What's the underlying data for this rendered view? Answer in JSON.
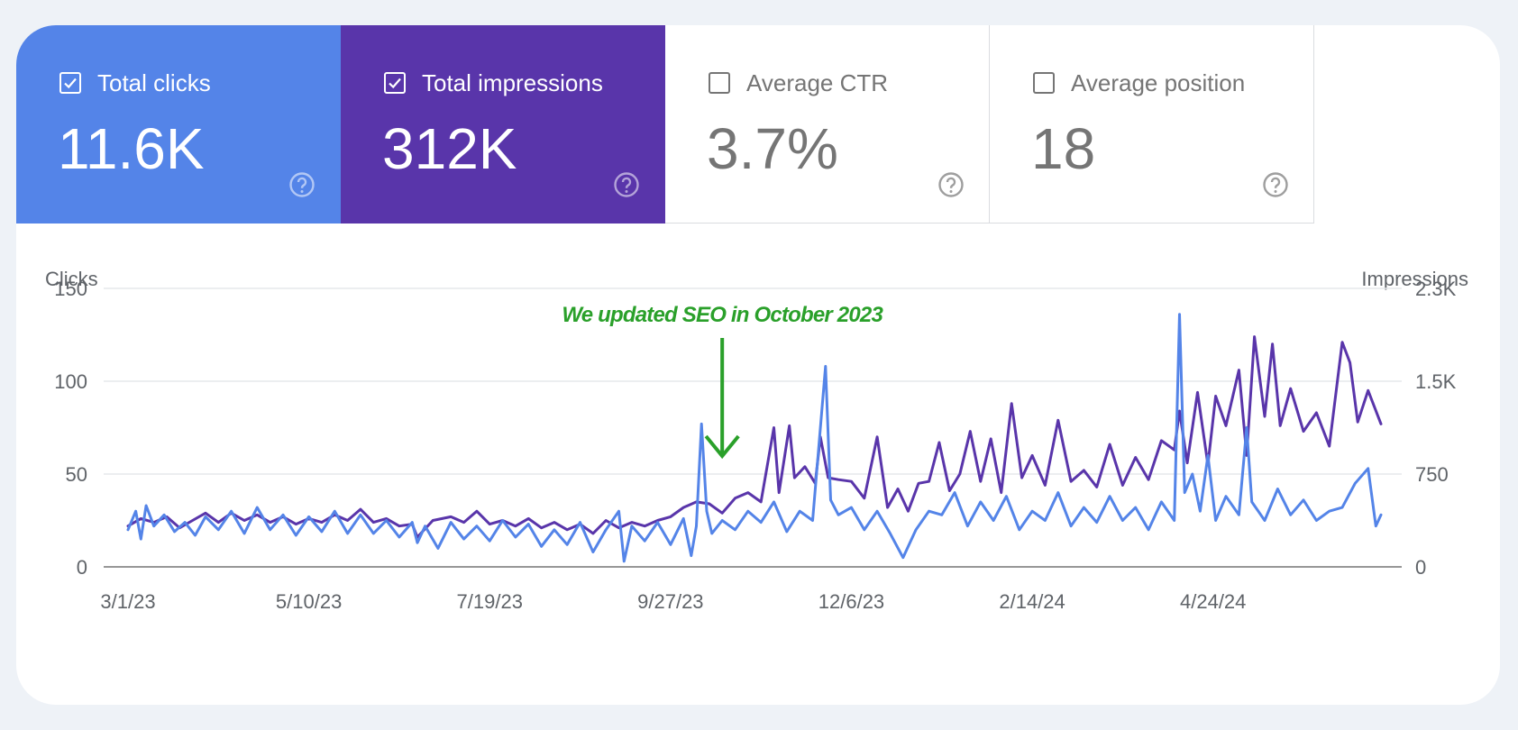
{
  "colors": {
    "clicks": "#5484e8",
    "impressions": "#5935aa",
    "annotation": "#2aa02a",
    "grid": "#e6e8eb",
    "axis": "#757575",
    "tick_text": "#5f6368"
  },
  "metrics": [
    {
      "label": "Total clicks",
      "value": "11.6K",
      "checked": true,
      "color": "#5484e8",
      "help_icon": "help-circle-icon"
    },
    {
      "label": "Total impressions",
      "value": "312K",
      "checked": true,
      "color": "#5935aa",
      "help_icon": "help-circle-icon"
    },
    {
      "label": "Average CTR",
      "value": "3.7%",
      "checked": false,
      "color": "#ffffff",
      "help_icon": "help-circle-icon"
    },
    {
      "label": "Average position",
      "value": "18",
      "checked": false,
      "color": "#ffffff",
      "help_icon": "help-circle-icon"
    }
  ],
  "chart_data": {
    "type": "line",
    "left_axis_label": "Clicks",
    "right_axis_label": "Impressions",
    "left_ticks": [
      "150",
      "100",
      "50",
      "0"
    ],
    "left_tick_values": [
      150,
      100,
      50,
      0
    ],
    "right_ticks": [
      "2.3K",
      "1.5K",
      "750",
      "0"
    ],
    "right_tick_values": [
      2250,
      1500,
      750,
      0
    ],
    "left_ylim": [
      0,
      150
    ],
    "right_ylim": [
      0,
      2250
    ],
    "x_ticks": [
      "3/1/23",
      "5/10/23",
      "7/19/23",
      "9/27/23",
      "12/6/23",
      "2/14/24",
      "4/24/24"
    ],
    "x_tick_days": [
      0,
      70,
      140,
      210,
      280,
      350,
      420
    ],
    "x_range_days": [
      0,
      485
    ],
    "annotation": {
      "text": "We updated SEO in October 2023",
      "day": 230
    },
    "series": [
      {
        "name": "Clicks",
        "axis": "left",
        "keyframes": [
          [
            0,
            20
          ],
          [
            3,
            30
          ],
          [
            5,
            15
          ],
          [
            7,
            33
          ],
          [
            10,
            22
          ],
          [
            14,
            28
          ],
          [
            18,
            19
          ],
          [
            22,
            24
          ],
          [
            26,
            17
          ],
          [
            30,
            27
          ],
          [
            35,
            20
          ],
          [
            40,
            30
          ],
          [
            45,
            18
          ],
          [
            50,
            32
          ],
          [
            55,
            20
          ],
          [
            60,
            28
          ],
          [
            65,
            17
          ],
          [
            70,
            27
          ],
          [
            75,
            19
          ],
          [
            80,
            30
          ],
          [
            85,
            18
          ],
          [
            90,
            28
          ],
          [
            95,
            18
          ],
          [
            100,
            25
          ],
          [
            105,
            16
          ],
          [
            110,
            24
          ],
          [
            112,
            13
          ],
          [
            115,
            22
          ],
          [
            120,
            10
          ],
          [
            125,
            24
          ],
          [
            130,
            15
          ],
          [
            135,
            22
          ],
          [
            140,
            14
          ],
          [
            145,
            25
          ],
          [
            150,
            16
          ],
          [
            155,
            23
          ],
          [
            160,
            11
          ],
          [
            165,
            20
          ],
          [
            170,
            12
          ],
          [
            175,
            24
          ],
          [
            180,
            8
          ],
          [
            185,
            20
          ],
          [
            190,
            30
          ],
          [
            192,
            3
          ],
          [
            195,
            22
          ],
          [
            200,
            14
          ],
          [
            205,
            24
          ],
          [
            210,
            12
          ],
          [
            215,
            26
          ],
          [
            218,
            6
          ],
          [
            220,
            22
          ],
          [
            222,
            77
          ],
          [
            224,
            30
          ],
          [
            226,
            18
          ],
          [
            230,
            25
          ],
          [
            235,
            20
          ],
          [
            240,
            30
          ],
          [
            245,
            24
          ],
          [
            250,
            35
          ],
          [
            255,
            19
          ],
          [
            260,
            30
          ],
          [
            265,
            25
          ],
          [
            270,
            108
          ],
          [
            272,
            36
          ],
          [
            275,
            28
          ],
          [
            280,
            32
          ],
          [
            285,
            20
          ],
          [
            290,
            30
          ],
          [
            295,
            18
          ],
          [
            300,
            5
          ],
          [
            305,
            20
          ],
          [
            310,
            30
          ],
          [
            315,
            28
          ],
          [
            320,
            40
          ],
          [
            325,
            22
          ],
          [
            330,
            35
          ],
          [
            335,
            25
          ],
          [
            340,
            38
          ],
          [
            345,
            20
          ],
          [
            350,
            30
          ],
          [
            355,
            25
          ],
          [
            360,
            40
          ],
          [
            365,
            22
          ],
          [
            370,
            32
          ],
          [
            375,
            24
          ],
          [
            380,
            38
          ],
          [
            385,
            25
          ],
          [
            390,
            32
          ],
          [
            395,
            20
          ],
          [
            400,
            35
          ],
          [
            405,
            25
          ],
          [
            407,
            136
          ],
          [
            409,
            40
          ],
          [
            412,
            50
          ],
          [
            415,
            30
          ],
          [
            418,
            60
          ],
          [
            421,
            25
          ],
          [
            425,
            38
          ],
          [
            430,
            28
          ],
          [
            433,
            75
          ],
          [
            435,
            35
          ],
          [
            440,
            25
          ],
          [
            445,
            42
          ],
          [
            450,
            28
          ],
          [
            455,
            36
          ],
          [
            460,
            25
          ],
          [
            465,
            30
          ],
          [
            470,
            32
          ],
          [
            475,
            45
          ],
          [
            480,
            53
          ],
          [
            483,
            22
          ],
          [
            485,
            28
          ]
        ]
      },
      {
        "name": "Impressions",
        "axis": "right",
        "keyframes": [
          [
            0,
            330
          ],
          [
            5,
            390
          ],
          [
            10,
            360
          ],
          [
            15,
            405
          ],
          [
            20,
            315
          ],
          [
            25,
            375
          ],
          [
            30,
            435
          ],
          [
            35,
            360
          ],
          [
            40,
            435
          ],
          [
            45,
            375
          ],
          [
            50,
            420
          ],
          [
            55,
            360
          ],
          [
            60,
            405
          ],
          [
            65,
            345
          ],
          [
            70,
            390
          ],
          [
            75,
            360
          ],
          [
            80,
            420
          ],
          [
            85,
            375
          ],
          [
            90,
            465
          ],
          [
            95,
            360
          ],
          [
            100,
            390
          ],
          [
            105,
            330
          ],
          [
            110,
            345
          ],
          [
            112,
            240
          ],
          [
            118,
            375
          ],
          [
            125,
            405
          ],
          [
            130,
            360
          ],
          [
            135,
            450
          ],
          [
            140,
            345
          ],
          [
            145,
            375
          ],
          [
            150,
            330
          ],
          [
            155,
            390
          ],
          [
            160,
            315
          ],
          [
            165,
            360
          ],
          [
            170,
            300
          ],
          [
            175,
            345
          ],
          [
            180,
            270
          ],
          [
            185,
            375
          ],
          [
            190,
            315
          ],
          [
            195,
            360
          ],
          [
            200,
            330
          ],
          [
            205,
            375
          ],
          [
            210,
            405
          ],
          [
            215,
            480
          ],
          [
            220,
            525
          ],
          [
            225,
            510
          ],
          [
            230,
            435
          ],
          [
            235,
            555
          ],
          [
            240,
            600
          ],
          [
            245,
            525
          ],
          [
            250,
            1125
          ],
          [
            252,
            600
          ],
          [
            256,
            1140
          ],
          [
            258,
            720
          ],
          [
            262,
            810
          ],
          [
            266,
            675
          ],
          [
            268,
            1050
          ],
          [
            271,
            720
          ],
          [
            275,
            705
          ],
          [
            280,
            690
          ],
          [
            285,
            555
          ],
          [
            290,
            1050
          ],
          [
            294,
            480
          ],
          [
            298,
            630
          ],
          [
            302,
            450
          ],
          [
            306,
            675
          ],
          [
            310,
            690
          ],
          [
            314,
            1005
          ],
          [
            318,
            615
          ],
          [
            322,
            750
          ],
          [
            326,
            1095
          ],
          [
            330,
            690
          ],
          [
            334,
            1035
          ],
          [
            338,
            600
          ],
          [
            342,
            1320
          ],
          [
            346,
            720
          ],
          [
            350,
            900
          ],
          [
            355,
            660
          ],
          [
            360,
            1185
          ],
          [
            365,
            690
          ],
          [
            370,
            780
          ],
          [
            375,
            645
          ],
          [
            380,
            990
          ],
          [
            385,
            660
          ],
          [
            390,
            885
          ],
          [
            395,
            705
          ],
          [
            400,
            1020
          ],
          [
            405,
            945
          ],
          [
            407,
            1260
          ],
          [
            410,
            840
          ],
          [
            414,
            1410
          ],
          [
            418,
            825
          ],
          [
            421,
            1380
          ],
          [
            425,
            1140
          ],
          [
            430,
            1590
          ],
          [
            433,
            900
          ],
          [
            436,
            1860
          ],
          [
            440,
            1215
          ],
          [
            443,
            1800
          ],
          [
            446,
            1140
          ],
          [
            450,
            1440
          ],
          [
            455,
            1095
          ],
          [
            460,
            1245
          ],
          [
            465,
            975
          ],
          [
            470,
            1815
          ],
          [
            473,
            1650
          ],
          [
            476,
            1170
          ],
          [
            480,
            1425
          ],
          [
            485,
            1155
          ]
        ]
      }
    ]
  }
}
